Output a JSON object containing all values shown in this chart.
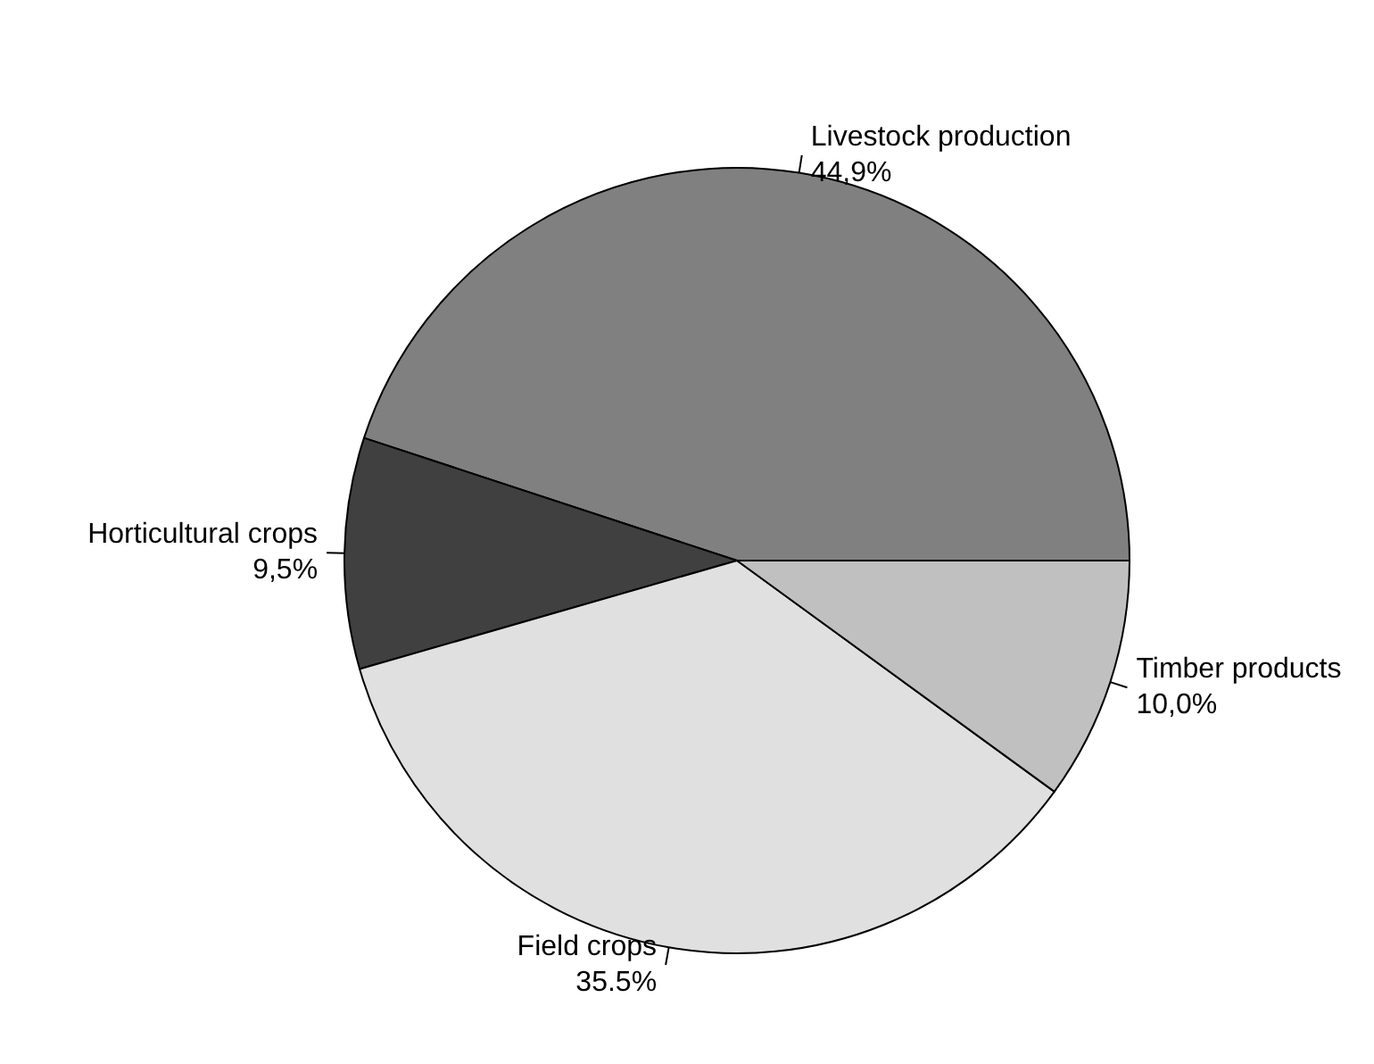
{
  "chart_data": {
    "type": "pie",
    "categories": [
      "Livestock production",
      "Horticultural crops",
      "Field crops",
      "Timber products"
    ],
    "values": [
      44.9,
      9.5,
      35.5,
      10.0
    ],
    "value_labels": [
      "44,9%",
      "9,5%",
      "35.5%",
      "10,0%"
    ],
    "colors": [
      "#808080",
      "#404040",
      "#e0e0e0",
      "#c0c0c0"
    ],
    "legend": false
  }
}
